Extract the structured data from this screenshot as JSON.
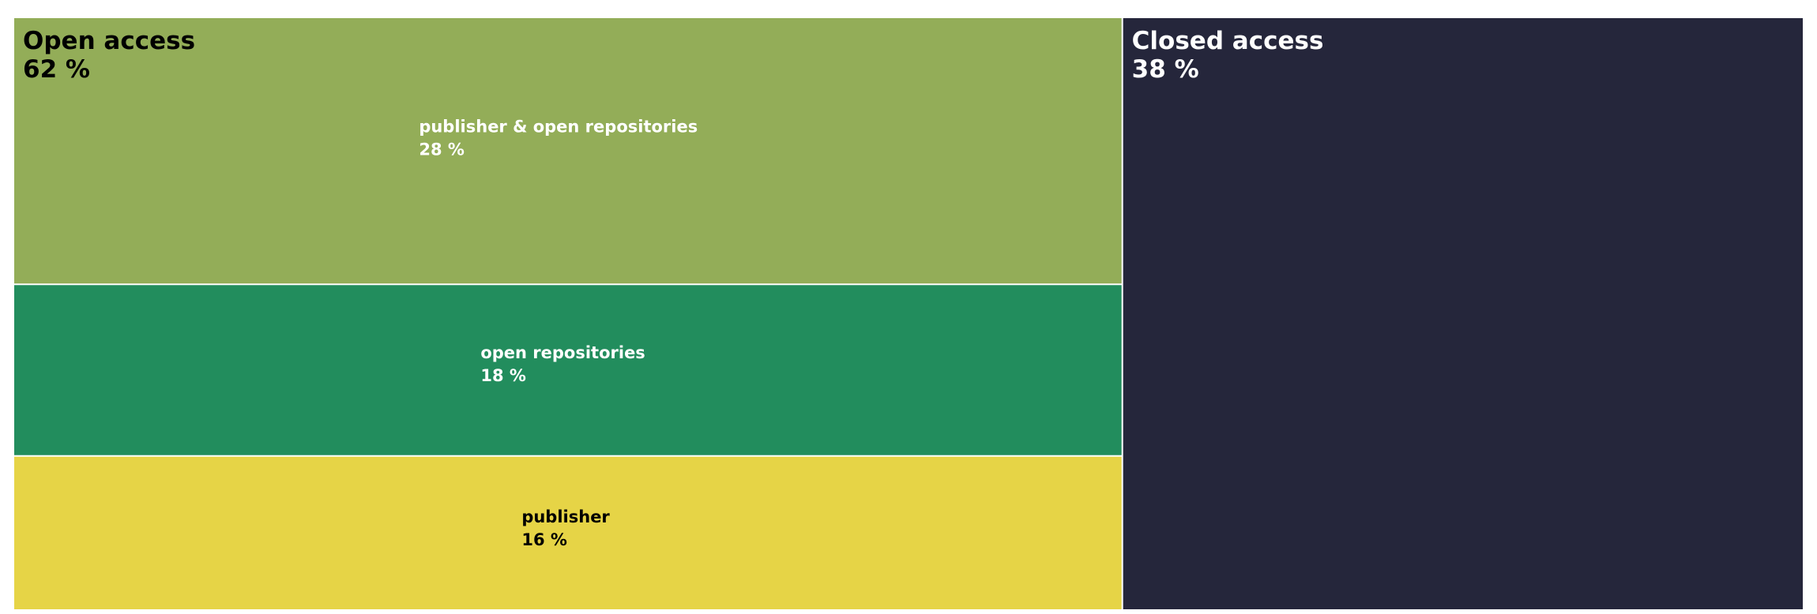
{
  "chart_data": {
    "type": "treemap",
    "groups": [
      {
        "name": "Open access",
        "value_label": "62 %",
        "value": 62,
        "color": "#93ad58",
        "text_color": "#000000",
        "children": [
          {
            "name": "publisher & open repositories",
            "value_label": "28 %",
            "value": 28,
            "color": "#93ad58",
            "text_color": "#ffffff"
          },
          {
            "name": "open repositories",
            "value_label": "18 %",
            "value": 18,
            "color": "#228d5d",
            "text_color": "#ffffff"
          },
          {
            "name": "publisher",
            "value_label": "16 %",
            "value": 16,
            "color": "#e6d446",
            "text_color": "#000000"
          }
        ]
      },
      {
        "name": "Closed access",
        "value_label": "38 %",
        "value": 38,
        "color": "#25263b",
        "text_color": "#ffffff",
        "children": []
      }
    ]
  }
}
